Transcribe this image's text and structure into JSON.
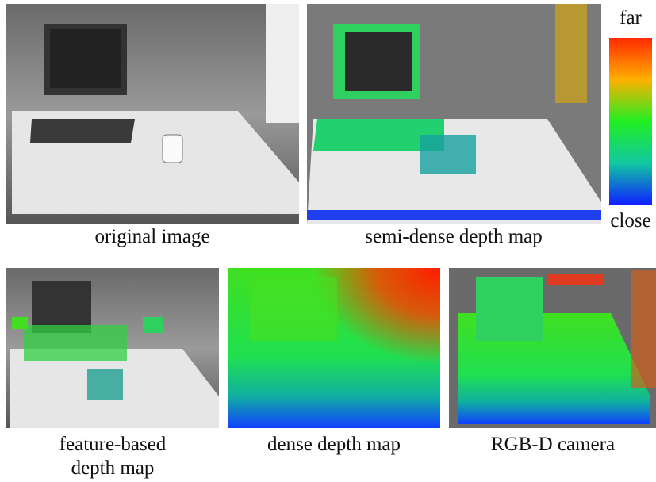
{
  "panels": [
    {
      "caption_lines": [
        "original image"
      ]
    },
    {
      "caption_lines": [
        "semi-dense depth map"
      ]
    },
    {
      "caption_lines": [
        "feature-based",
        "depth map"
      ]
    },
    {
      "caption_lines": [
        "dense depth map"
      ]
    },
    {
      "caption_lines": [
        "RGB-D camera"
      ]
    }
  ],
  "colorbar": {
    "top_label": "far",
    "bottom_label": "close"
  }
}
